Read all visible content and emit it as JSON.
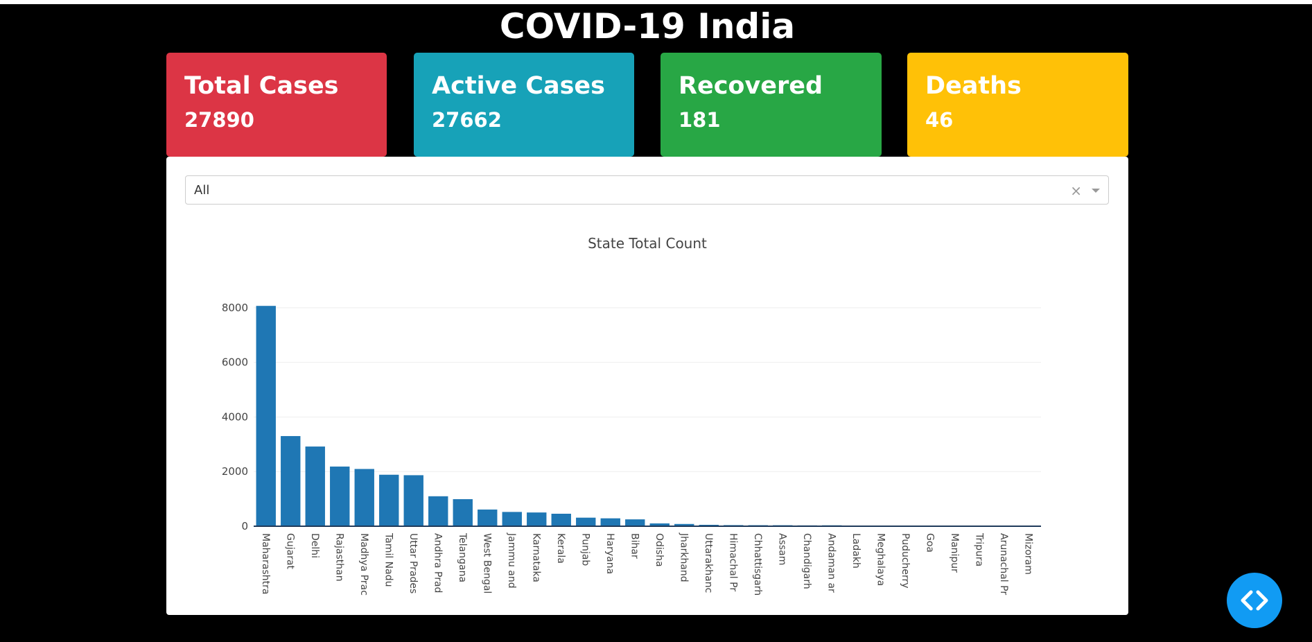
{
  "page": {
    "title": "COVID-19 India"
  },
  "cards": [
    {
      "label": "Total Cases",
      "value": "27890",
      "color": "#dc3545"
    },
    {
      "label": "Active Cases",
      "value": "27662",
      "color": "#17a2b8"
    },
    {
      "label": "Recovered",
      "value": "181",
      "color": "#28a745"
    },
    {
      "label": "Deaths",
      "value": "46",
      "color": "#ffc107"
    }
  ],
  "dropdown": {
    "selected": "All",
    "clear_symbol": "×"
  },
  "chart_data": {
    "type": "bar",
    "title": "State Total Count",
    "xlabel": "",
    "ylabel": "",
    "ylim": [
      0,
      8200
    ],
    "yticks": [
      0,
      2000,
      4000,
      6000,
      8000
    ],
    "grid": true,
    "bar_color": "#1f77b4",
    "categories": [
      "Maharashtra",
      "Gujarat",
      "Delhi",
      "Rajasthan",
      "Madhya Pradesh",
      "Tamil Nadu",
      "Uttar Pradesh",
      "Andhra Pradesh",
      "Telangana",
      "West Bengal",
      "Jammu and Kashmir",
      "Karnataka",
      "Kerala",
      "Punjab",
      "Haryana",
      "Bihar",
      "Odisha",
      "Jharkhand",
      "Uttarakhand",
      "Himachal Pradesh",
      "Chhattisgarh",
      "Assam",
      "Chandigarh",
      "Andaman and Nicobar Islands",
      "Ladakh",
      "Meghalaya",
      "Puducherry",
      "Goa",
      "Manipur",
      "Tripura",
      "Arunachal Pradesh",
      "Mizoram"
    ],
    "tick_labels": [
      "Maharashtra",
      "Gujarat",
      "Delhi",
      "Rajasthan",
      "Madhya Prac",
      "Tamil Nadu",
      "Uttar Prades",
      "Andhra Prad",
      "Telangana",
      "West Bengal",
      "Jammu and",
      "Karnataka",
      "Kerala",
      "Punjab",
      "Haryana",
      "Bihar",
      "Odisha",
      "Jharkhand",
      "Uttarakhanc",
      "Himachal Pr",
      "Chhattisgarh",
      "Assam",
      "Chandigarh",
      "Andaman ar",
      "Ladakh",
      "Meghalaya",
      "Puducherry",
      "Goa",
      "Manipur",
      "Tripura",
      "Arunachal Pr",
      "Mizoram"
    ],
    "values": [
      8068,
      3301,
      2918,
      2185,
      2096,
      1885,
      1868,
      1097,
      991,
      611,
      523,
      503,
      457,
      313,
      289,
      251,
      103,
      82,
      51,
      40,
      37,
      36,
      30,
      33,
      20,
      12,
      8,
      7,
      2,
      2,
      1,
      1
    ]
  }
}
